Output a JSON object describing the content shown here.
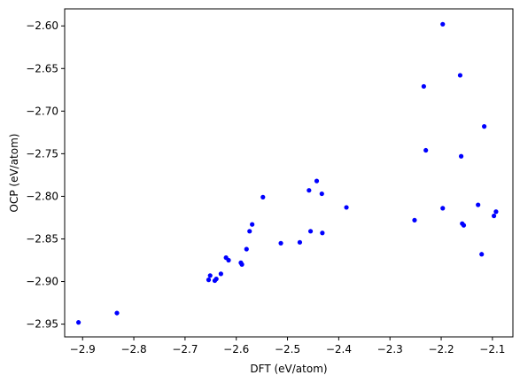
{
  "chart_data": {
    "type": "scatter",
    "xlabel": "DFT (eV/atom)",
    "ylabel": "OCP (eV/atom)",
    "xlim": [
      -2.935,
      -2.06
    ],
    "ylim": [
      -2.965,
      -2.58
    ],
    "xticks": [
      -2.9,
      -2.8,
      -2.7,
      -2.6,
      -2.5,
      -2.4,
      -2.3,
      -2.2,
      -2.1
    ],
    "xtick_labels": [
      "−2.9",
      "−2.8",
      "−2.7",
      "−2.6",
      "−2.5",
      "−2.4",
      "−2.3",
      "−2.2",
      "−2.1"
    ],
    "yticks": [
      -2.95,
      -2.9,
      -2.85,
      -2.8,
      -2.75,
      -2.7,
      -2.65,
      -2.6
    ],
    "ytick_labels": [
      "−2.95",
      "−2.90",
      "−2.85",
      "−2.80",
      "−2.75",
      "−2.70",
      "−2.65",
      "−2.60"
    ],
    "grid": false,
    "marker_color": "#0000ff",
    "points": [
      {
        "x": -2.908,
        "y": -2.948
      },
      {
        "x": -2.833,
        "y": -2.937
      },
      {
        "x": -2.654,
        "y": -2.898
      },
      {
        "x": -2.651,
        "y": -2.893
      },
      {
        "x": -2.642,
        "y": -2.899
      },
      {
        "x": -2.639,
        "y": -2.897
      },
      {
        "x": -2.63,
        "y": -2.891
      },
      {
        "x": -2.62,
        "y": -2.872
      },
      {
        "x": -2.615,
        "y": -2.875
      },
      {
        "x": -2.591,
        "y": -2.878
      },
      {
        "x": -2.589,
        "y": -2.88
      },
      {
        "x": -2.58,
        "y": -2.862
      },
      {
        "x": -2.574,
        "y": -2.841
      },
      {
        "x": -2.569,
        "y": -2.833
      },
      {
        "x": -2.548,
        "y": -2.801
      },
      {
        "x": -2.513,
        "y": -2.855
      },
      {
        "x": -2.476,
        "y": -2.854
      },
      {
        "x": -2.458,
        "y": -2.793
      },
      {
        "x": -2.455,
        "y": -2.841
      },
      {
        "x": -2.443,
        "y": -2.782
      },
      {
        "x": -2.433,
        "y": -2.797
      },
      {
        "x": -2.432,
        "y": -2.843
      },
      {
        "x": -2.385,
        "y": -2.813
      },
      {
        "x": -2.252,
        "y": -2.828
      },
      {
        "x": -2.234,
        "y": -2.671
      },
      {
        "x": -2.23,
        "y": -2.746
      },
      {
        "x": -2.197,
        "y": -2.598
      },
      {
        "x": -2.197,
        "y": -2.814
      },
      {
        "x": -2.163,
        "y": -2.658
      },
      {
        "x": -2.161,
        "y": -2.753
      },
      {
        "x": -2.159,
        "y": -2.832
      },
      {
        "x": -2.156,
        "y": -2.834
      },
      {
        "x": -2.128,
        "y": -2.81
      },
      {
        "x": -2.121,
        "y": -2.868
      },
      {
        "x": -2.116,
        "y": -2.718
      },
      {
        "x": -2.097,
        "y": -2.823
      },
      {
        "x": -2.093,
        "y": -2.818
      }
    ]
  }
}
